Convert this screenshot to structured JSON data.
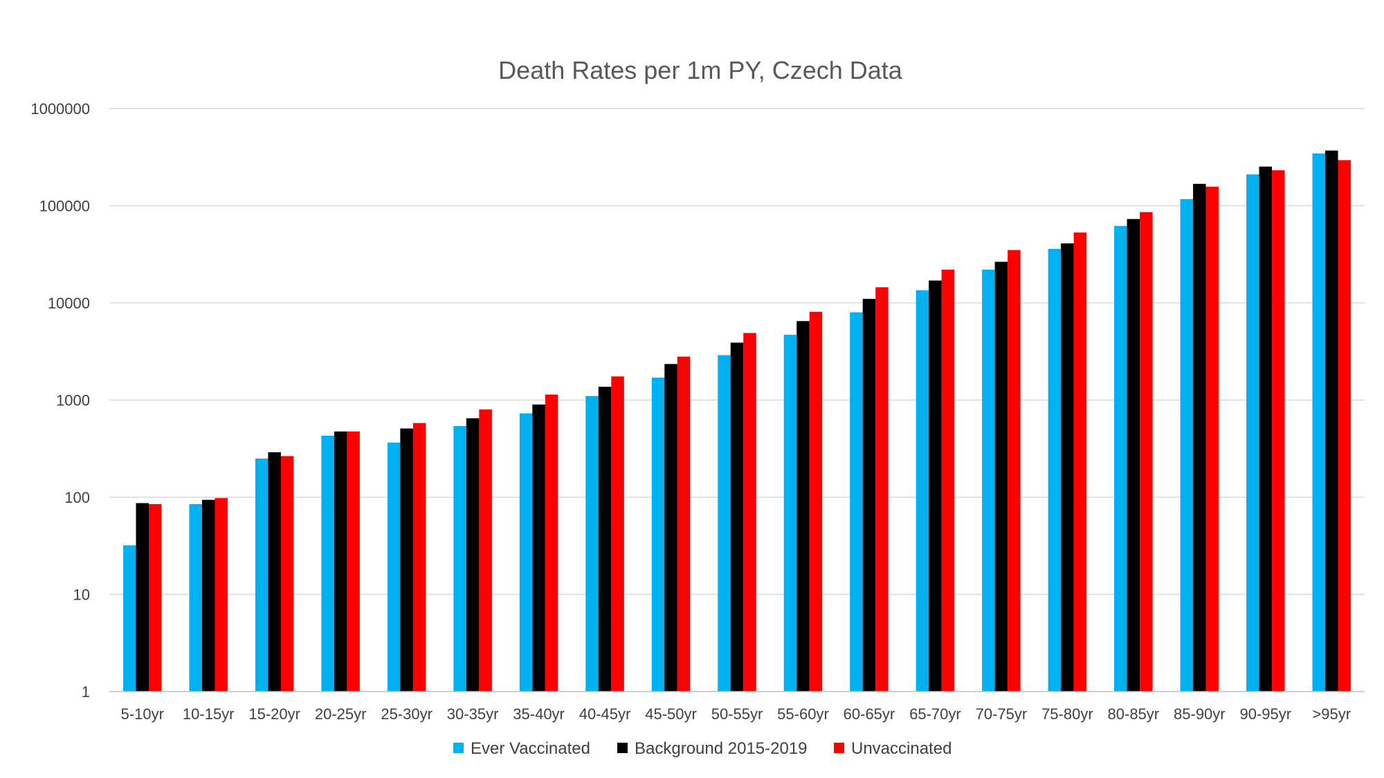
{
  "chart_data": {
    "type": "bar",
    "title": "Death Rates per 1m PY, Czech Data",
    "xlabel": "",
    "ylabel": "",
    "y_scale": "log",
    "ylim": [
      1,
      1000000
    ],
    "y_ticks": [
      "1",
      "10",
      "100",
      "1000",
      "10000",
      "100000",
      "1000000"
    ],
    "grid": true,
    "legend_position": "bottom",
    "categories": [
      "5-10yr",
      "10-15yr",
      "15-20yr",
      "20-25yr",
      "25-30yr",
      "30-35yr",
      "35-40yr",
      "40-45yr",
      "45-50yr",
      "50-55yr",
      "55-60yr",
      "60-65yr",
      "65-70yr",
      "70-75yr",
      "75-80yr",
      "80-85yr",
      "85-90yr",
      "90-95yr",
      ">95yr"
    ],
    "series": [
      {
        "name": "Ever Vaccinated",
        "color": "#00b0f0",
        "values": [
          32,
          85,
          250,
          430,
          365,
          540,
          730,
          1100,
          1700,
          2900,
          4700,
          8000,
          13500,
          22000,
          36000,
          62000,
          117000,
          210000,
          345000
        ]
      },
      {
        "name": "Background 2015-2019",
        "color": "#000000",
        "values": [
          87,
          94,
          290,
          475,
          510,
          650,
          900,
          1370,
          2350,
          3900,
          6500,
          11000,
          17000,
          26500,
          41000,
          73000,
          168000,
          253000,
          370000
        ]
      },
      {
        "name": "Unvaccinated",
        "color": "#ff0000",
        "values": [
          85,
          98,
          265,
          475,
          580,
          800,
          1140,
          1750,
          2800,
          4900,
          8100,
          14500,
          22000,
          35000,
          53000,
          86000,
          157000,
          232000,
          295000
        ]
      }
    ]
  }
}
